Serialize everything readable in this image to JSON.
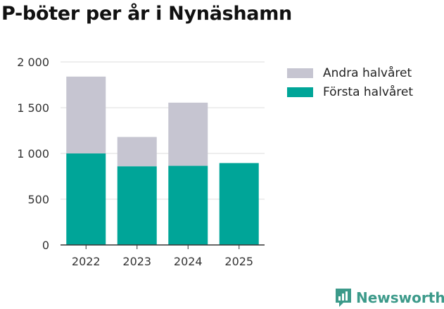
{
  "chart_data": {
    "type": "bar",
    "stacked": true,
    "title": "P-böter per år i Nynäshamn",
    "categories": [
      "2022",
      "2023",
      "2024",
      "2025"
    ],
    "series": [
      {
        "name": "Första halvåret",
        "color": "#00a598",
        "values": [
          1000,
          860,
          865,
          895
        ]
      },
      {
        "name": "Andra halvåret",
        "color": "#c6c5d1",
        "values": [
          840,
          320,
          690,
          0
        ]
      }
    ],
    "ylim": [
      0,
      2000
    ],
    "yticks": [
      0,
      500,
      1000,
      1500,
      2000
    ],
    "ytick_labels": [
      "0",
      "500",
      "1 000",
      "1 500",
      "2 000"
    ],
    "xlabel": "",
    "ylabel": "",
    "legend_position": "top-right",
    "grid": true
  },
  "legend": [
    {
      "label": "Andra halvåret",
      "color": "#c6c5d1"
    },
    {
      "label": "Första halvåret",
      "color": "#00a598"
    }
  ],
  "brand": {
    "name": "Newsworthy",
    "color": "#3c9a8a"
  }
}
